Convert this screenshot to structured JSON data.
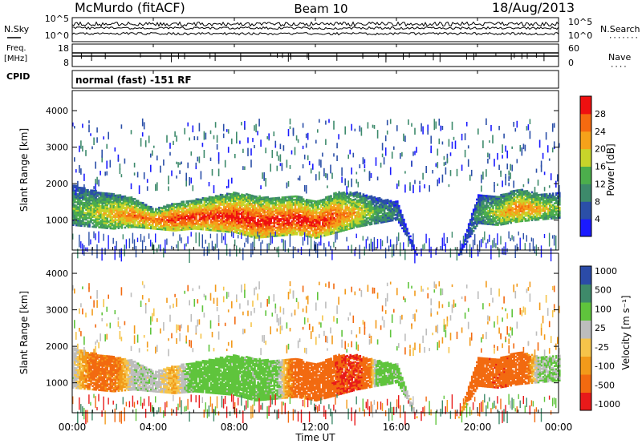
{
  "header": {
    "station": "McMurdo (fitACF)",
    "beam": "Beam 10",
    "date": "18/Aug/2013"
  },
  "status_panel": {
    "left_labels": [
      "N.Sky",
      "Freq.",
      "[MHz]",
      "CPID"
    ],
    "right_labels": [
      "N.Search",
      "Nave"
    ],
    "right_dots": [
      "·······",
      "····"
    ],
    "nsky_ticks": [
      "10^5",
      "10^0"
    ],
    "nsearch_ticks": [
      "10^5",
      "10^0"
    ],
    "freq_ticks": [
      "18",
      "8"
    ],
    "nave_ticks": [
      "60",
      "0"
    ],
    "cpid_text": "normal (fast) -151 RF"
  },
  "colors": {
    "power": [
      "#1a1aff",
      "#2b4fa8",
      "#3d8a6b",
      "#4cae4c",
      "#c8d42a",
      "#f5a21a",
      "#f56a10",
      "#ef1010"
    ],
    "velocity": [
      "#e81a1a",
      "#f26a10",
      "#f29a1a",
      "#f6c44a",
      "#bdbdbd",
      "#5fc43c",
      "#3e8a6a",
      "#2b4ba8"
    ]
  },
  "chart_data": [
    {
      "type": "heatmap",
      "panel": "power",
      "xlabel": "",
      "ylabel": "Slant Range [km]",
      "x_range_hours": [
        0,
        24
      ],
      "ylim": [
        180,
        4550
      ],
      "x_ticks": [
        "00:00",
        "04:00",
        "08:00",
        "12:00",
        "16:00",
        "20:00",
        "00:00"
      ],
      "y_ticks": [
        1000,
        2000,
        3000,
        4000
      ],
      "colorbar_label": "Power [dB]",
      "colorbar_ticks": [
        4,
        8,
        12,
        16,
        20,
        24,
        28
      ],
      "colorbar_range": [
        0,
        32
      ],
      "main_band": {
        "hours": [
          0,
          1,
          2,
          3,
          4,
          5,
          6,
          7,
          8,
          9,
          10,
          11,
          12,
          13,
          14,
          15,
          16,
          17,
          18,
          19,
          20,
          21,
          22,
          23,
          24
        ],
        "bottom_km": [
          850,
          800,
          750,
          800,
          750,
          700,
          750,
          700,
          650,
          500,
          550,
          600,
          500,
          650,
          800,
          900,
          1000,
          0,
          0,
          0,
          900,
          850,
          950,
          1000,
          1050
        ],
        "top_km": [
          1950,
          1800,
          1700,
          1600,
          1300,
          1450,
          1550,
          1650,
          1750,
          1650,
          1600,
          1650,
          1500,
          1750,
          1750,
          1600,
          1500,
          0,
          0,
          0,
          1700,
          1650,
          1850,
          1700,
          1750
        ],
        "peak_db": [
          14,
          18,
          22,
          26,
          26,
          30,
          30,
          30,
          31,
          31,
          31,
          31,
          31,
          28,
          22,
          14,
          10,
          0,
          0,
          0,
          12,
          20,
          26,
          22,
          16
        ]
      }
    },
    {
      "type": "heatmap",
      "panel": "velocity",
      "xlabel": "Time UT",
      "ylabel": "Slant Range [km]",
      "x_range_hours": [
        0,
        24
      ],
      "ylim": [
        180,
        4550
      ],
      "x_ticks": [
        "00:00",
        "04:00",
        "08:00",
        "12:00",
        "16:00",
        "20:00",
        "00:00"
      ],
      "y_ticks": [
        1000,
        2000,
        3000,
        4000
      ],
      "colorbar_label": "Velocity [m s⁻¹]",
      "colorbar_ticks": [
        "1000",
        "500",
        "100",
        "25",
        "-25",
        "-100",
        "-500",
        "-1000"
      ],
      "main_band": {
        "hours": [
          0,
          1,
          2,
          3,
          4,
          5,
          6,
          7,
          8,
          9,
          10,
          11,
          12,
          13,
          14,
          15,
          16,
          17,
          18,
          19,
          20,
          21,
          22,
          23,
          24
        ],
        "bottom_km": [
          850,
          800,
          750,
          800,
          750,
          700,
          750,
          700,
          650,
          500,
          550,
          600,
          500,
          650,
          800,
          900,
          1000,
          0,
          0,
          0,
          900,
          850,
          950,
          1000,
          1050
        ],
        "top_km": [
          1950,
          1800,
          1700,
          1600,
          1300,
          1450,
          1550,
          1650,
          1750,
          1650,
          1600,
          1650,
          1500,
          1750,
          1750,
          1600,
          1500,
          0,
          0,
          0,
          1700,
          1650,
          1850,
          1700,
          1750
        ],
        "velocity_ms": [
          60,
          -150,
          -150,
          80,
          80,
          -40,
          200,
          200,
          200,
          150,
          150,
          -200,
          -250,
          -400,
          -600,
          150,
          150,
          0,
          0,
          0,
          -300,
          -400,
          -300,
          100,
          100
        ]
      }
    }
  ]
}
